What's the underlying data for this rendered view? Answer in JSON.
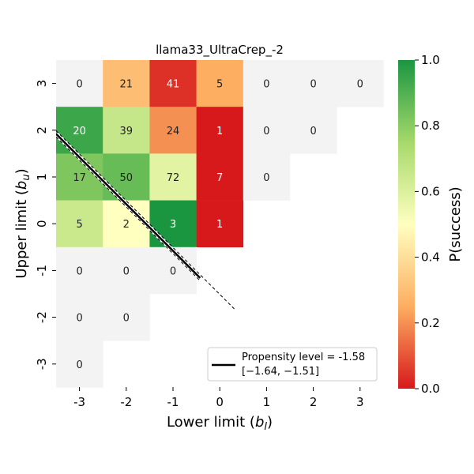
{
  "chart_data": {
    "type": "heatmap",
    "title": "llama33_UltraCrep_-2",
    "xlabel_main": "Lower limit (",
    "xlabel_sym": "b",
    "xlabel_sub": "l",
    "xlabel_close": ")",
    "ylabel_main": "Upper limit (",
    "ylabel_sym": "b",
    "ylabel_sub": "u",
    "ylabel_close": ")",
    "x_ticks": [
      "-3",
      "-2",
      "-1",
      "0",
      "1",
      "2",
      "3"
    ],
    "y_ticks": [
      "3",
      "2",
      "1",
      "0",
      "-1",
      "-2",
      "-3"
    ],
    "cells": [
      {
        "x": -3,
        "y": 3,
        "count": 0,
        "p": null
      },
      {
        "x": -2,
        "y": 3,
        "count": 21,
        "p": 0.3
      },
      {
        "x": -1,
        "y": 3,
        "count": 41,
        "p": 0.04
      },
      {
        "x": 0,
        "y": 3,
        "count": 5,
        "p": 0.25
      },
      {
        "x": 1,
        "y": 3,
        "count": 0,
        "p": null
      },
      {
        "x": 2,
        "y": 3,
        "count": 0,
        "p": null
      },
      {
        "x": 3,
        "y": 3,
        "count": 0,
        "p": null
      },
      {
        "x": -3,
        "y": 2,
        "count": 20,
        "p": 0.94
      },
      {
        "x": -2,
        "y": 2,
        "count": 39,
        "p": 0.66
      },
      {
        "x": -1,
        "y": 2,
        "count": 24,
        "p": 0.2
      },
      {
        "x": 0,
        "y": 2,
        "count": 1,
        "p": 0.0
      },
      {
        "x": 1,
        "y": 2,
        "count": 0,
        "p": null
      },
      {
        "x": 2,
        "y": 2,
        "count": 0,
        "p": null
      },
      {
        "x": -3,
        "y": 1,
        "count": 17,
        "p": 0.82
      },
      {
        "x": -2,
        "y": 1,
        "count": 50,
        "p": 0.86
      },
      {
        "x": -1,
        "y": 1,
        "count": 72,
        "p": 0.58
      },
      {
        "x": 0,
        "y": 1,
        "count": 7,
        "p": 0.0
      },
      {
        "x": 1,
        "y": 1,
        "count": 0,
        "p": null
      },
      {
        "x": -3,
        "y": 0,
        "count": 5,
        "p": 0.65
      },
      {
        "x": -2,
        "y": 0,
        "count": 2,
        "p": 0.5
      },
      {
        "x": -1,
        "y": 0,
        "count": 3,
        "p": 1.0
      },
      {
        "x": 0,
        "y": 0,
        "count": 1,
        "p": 0.0
      },
      {
        "x": -3,
        "y": -1,
        "count": 0,
        "p": null
      },
      {
        "x": -2,
        "y": -1,
        "count": 0,
        "p": null
      },
      {
        "x": -1,
        "y": -1,
        "count": 0,
        "p": null
      },
      {
        "x": -3,
        "y": -2,
        "count": 0,
        "p": null
      },
      {
        "x": -2,
        "y": -2,
        "count": 0,
        "p": null
      },
      {
        "x": -3,
        "y": -3,
        "count": 0,
        "p": null
      }
    ],
    "colorbar": {
      "label": "P(success)",
      "range": [
        0.0,
        1.0
      ],
      "ticks": [
        "0.0",
        "0.2",
        "0.4",
        "0.6",
        "0.8",
        "1.0"
      ],
      "colors": [
        "#d7191c",
        "#fdae61",
        "#ffffbf",
        "#a6d96a",
        "#1a9641"
      ]
    },
    "empty_cell_color": "#f3f3f3",
    "propensity_line": {
      "level": -1.58,
      "ci": [
        -1.64,
        -1.51
      ],
      "x_range": [
        -3.5,
        -0.42
      ]
    },
    "legend": {
      "line1": "Propensity level = -1.58",
      "line2": "[−1.64, −1.51]",
      "position": "lower-right"
    }
  }
}
